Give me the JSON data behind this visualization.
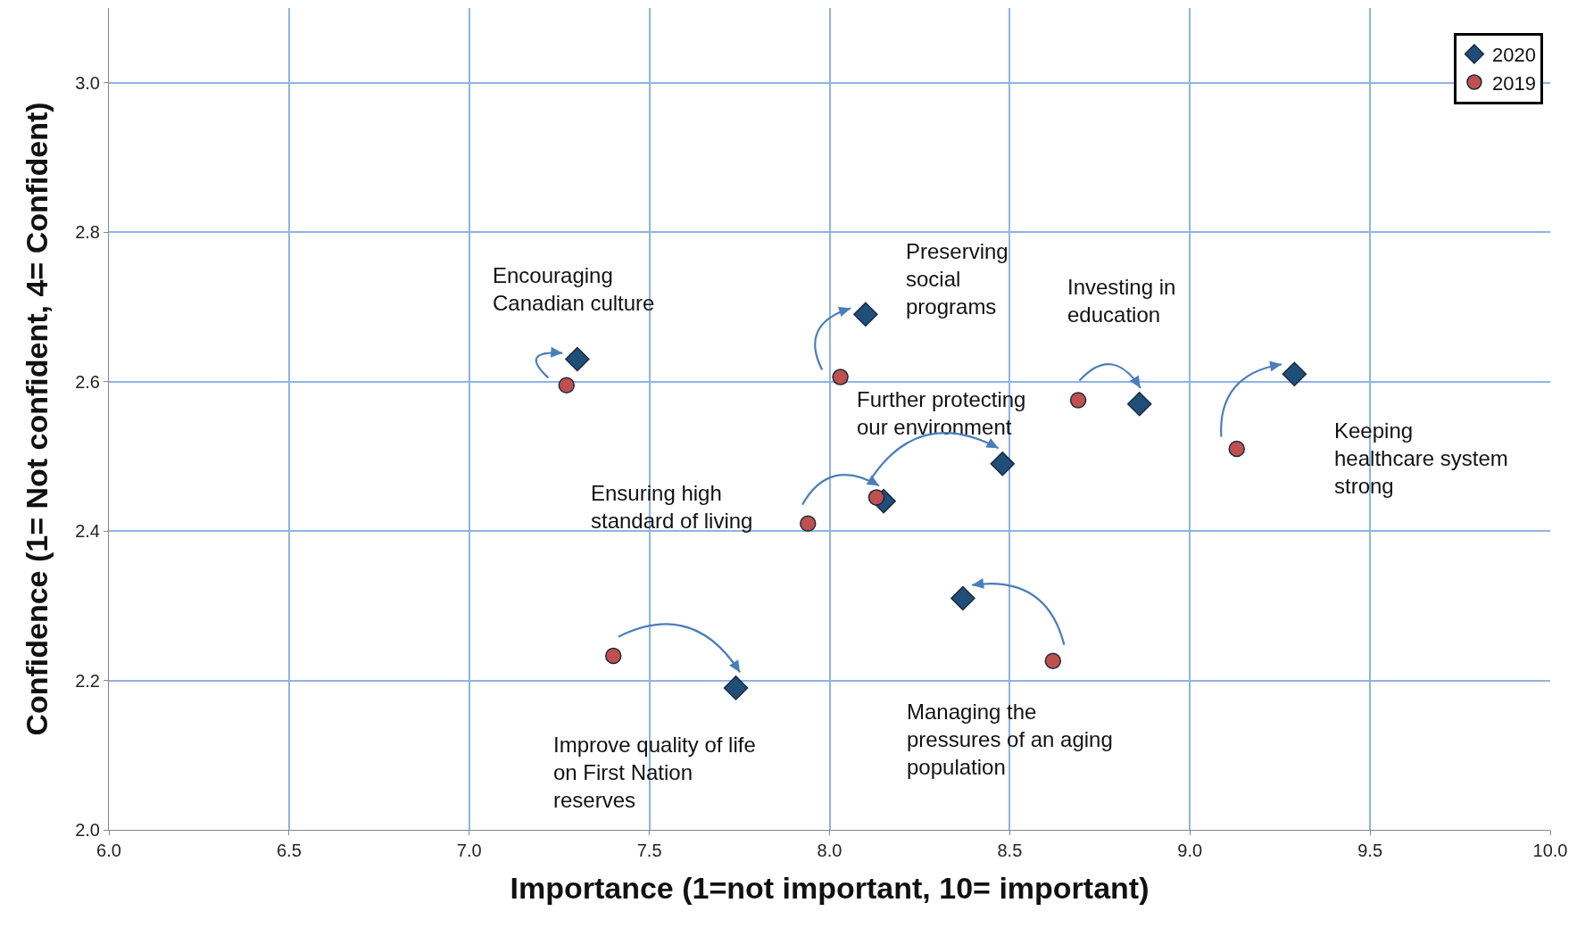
{
  "chart_data": {
    "type": "scatter",
    "xlabel": "Importance (1=not important, 10= important)",
    "ylabel": "Confidence (1= Not confident, 4= Confident)",
    "series": [
      {
        "name": "2020",
        "color": "#1f4e79",
        "marker": "diamond",
        "x": [
          7.3,
          8.1,
          8.86,
          9.29,
          8.48,
          8.15,
          8.37,
          7.74
        ],
        "values": [
          2.63,
          2.69,
          2.57,
          2.61,
          2.49,
          2.44,
          2.31,
          2.19
        ]
      },
      {
        "name": "2019",
        "color": "#c0504d",
        "marker": "circle",
        "x": [
          7.27,
          8.03,
          8.69,
          9.13,
          8.13,
          7.94,
          8.62,
          7.4
        ],
        "values": [
          2.595,
          2.606,
          2.575,
          2.51,
          2.445,
          2.41,
          2.226,
          2.233
        ]
      }
    ],
    "xlim": [
      6,
      10
    ],
    "xticks": [
      {
        "value": 6,
        "label": "6.0"
      },
      6.5,
      {
        "value": 7,
        "label": "7.0"
      },
      7.5,
      {
        "value": 8,
        "label": "8.0"
      },
      8.5,
      {
        "value": 9,
        "label": "9.0"
      },
      9.5,
      {
        "value": 10,
        "label": "10.0"
      }
    ],
    "ylim": [
      2,
      3.1
    ],
    "yticks": [
      {
        "value": 2,
        "label": "2.0"
      },
      2.2,
      2.4,
      2.6,
      2.8,
      {
        "value": 3,
        "label": "3.0"
      }
    ],
    "grid": true,
    "legend": "top right",
    "annotations": [
      "Encouraging\nCanadian culture",
      "Preserving\nsocial\nprograms",
      "Investing in\neducation",
      "Keeping\nhealthcare system\nstrong",
      "Further protecting\nour environment",
      "Ensuring high\nstandard of living",
      "Managing the\npressures of an aging\npopulation",
      "Improve quality of life\non First Nation\nreserves"
    ]
  }
}
